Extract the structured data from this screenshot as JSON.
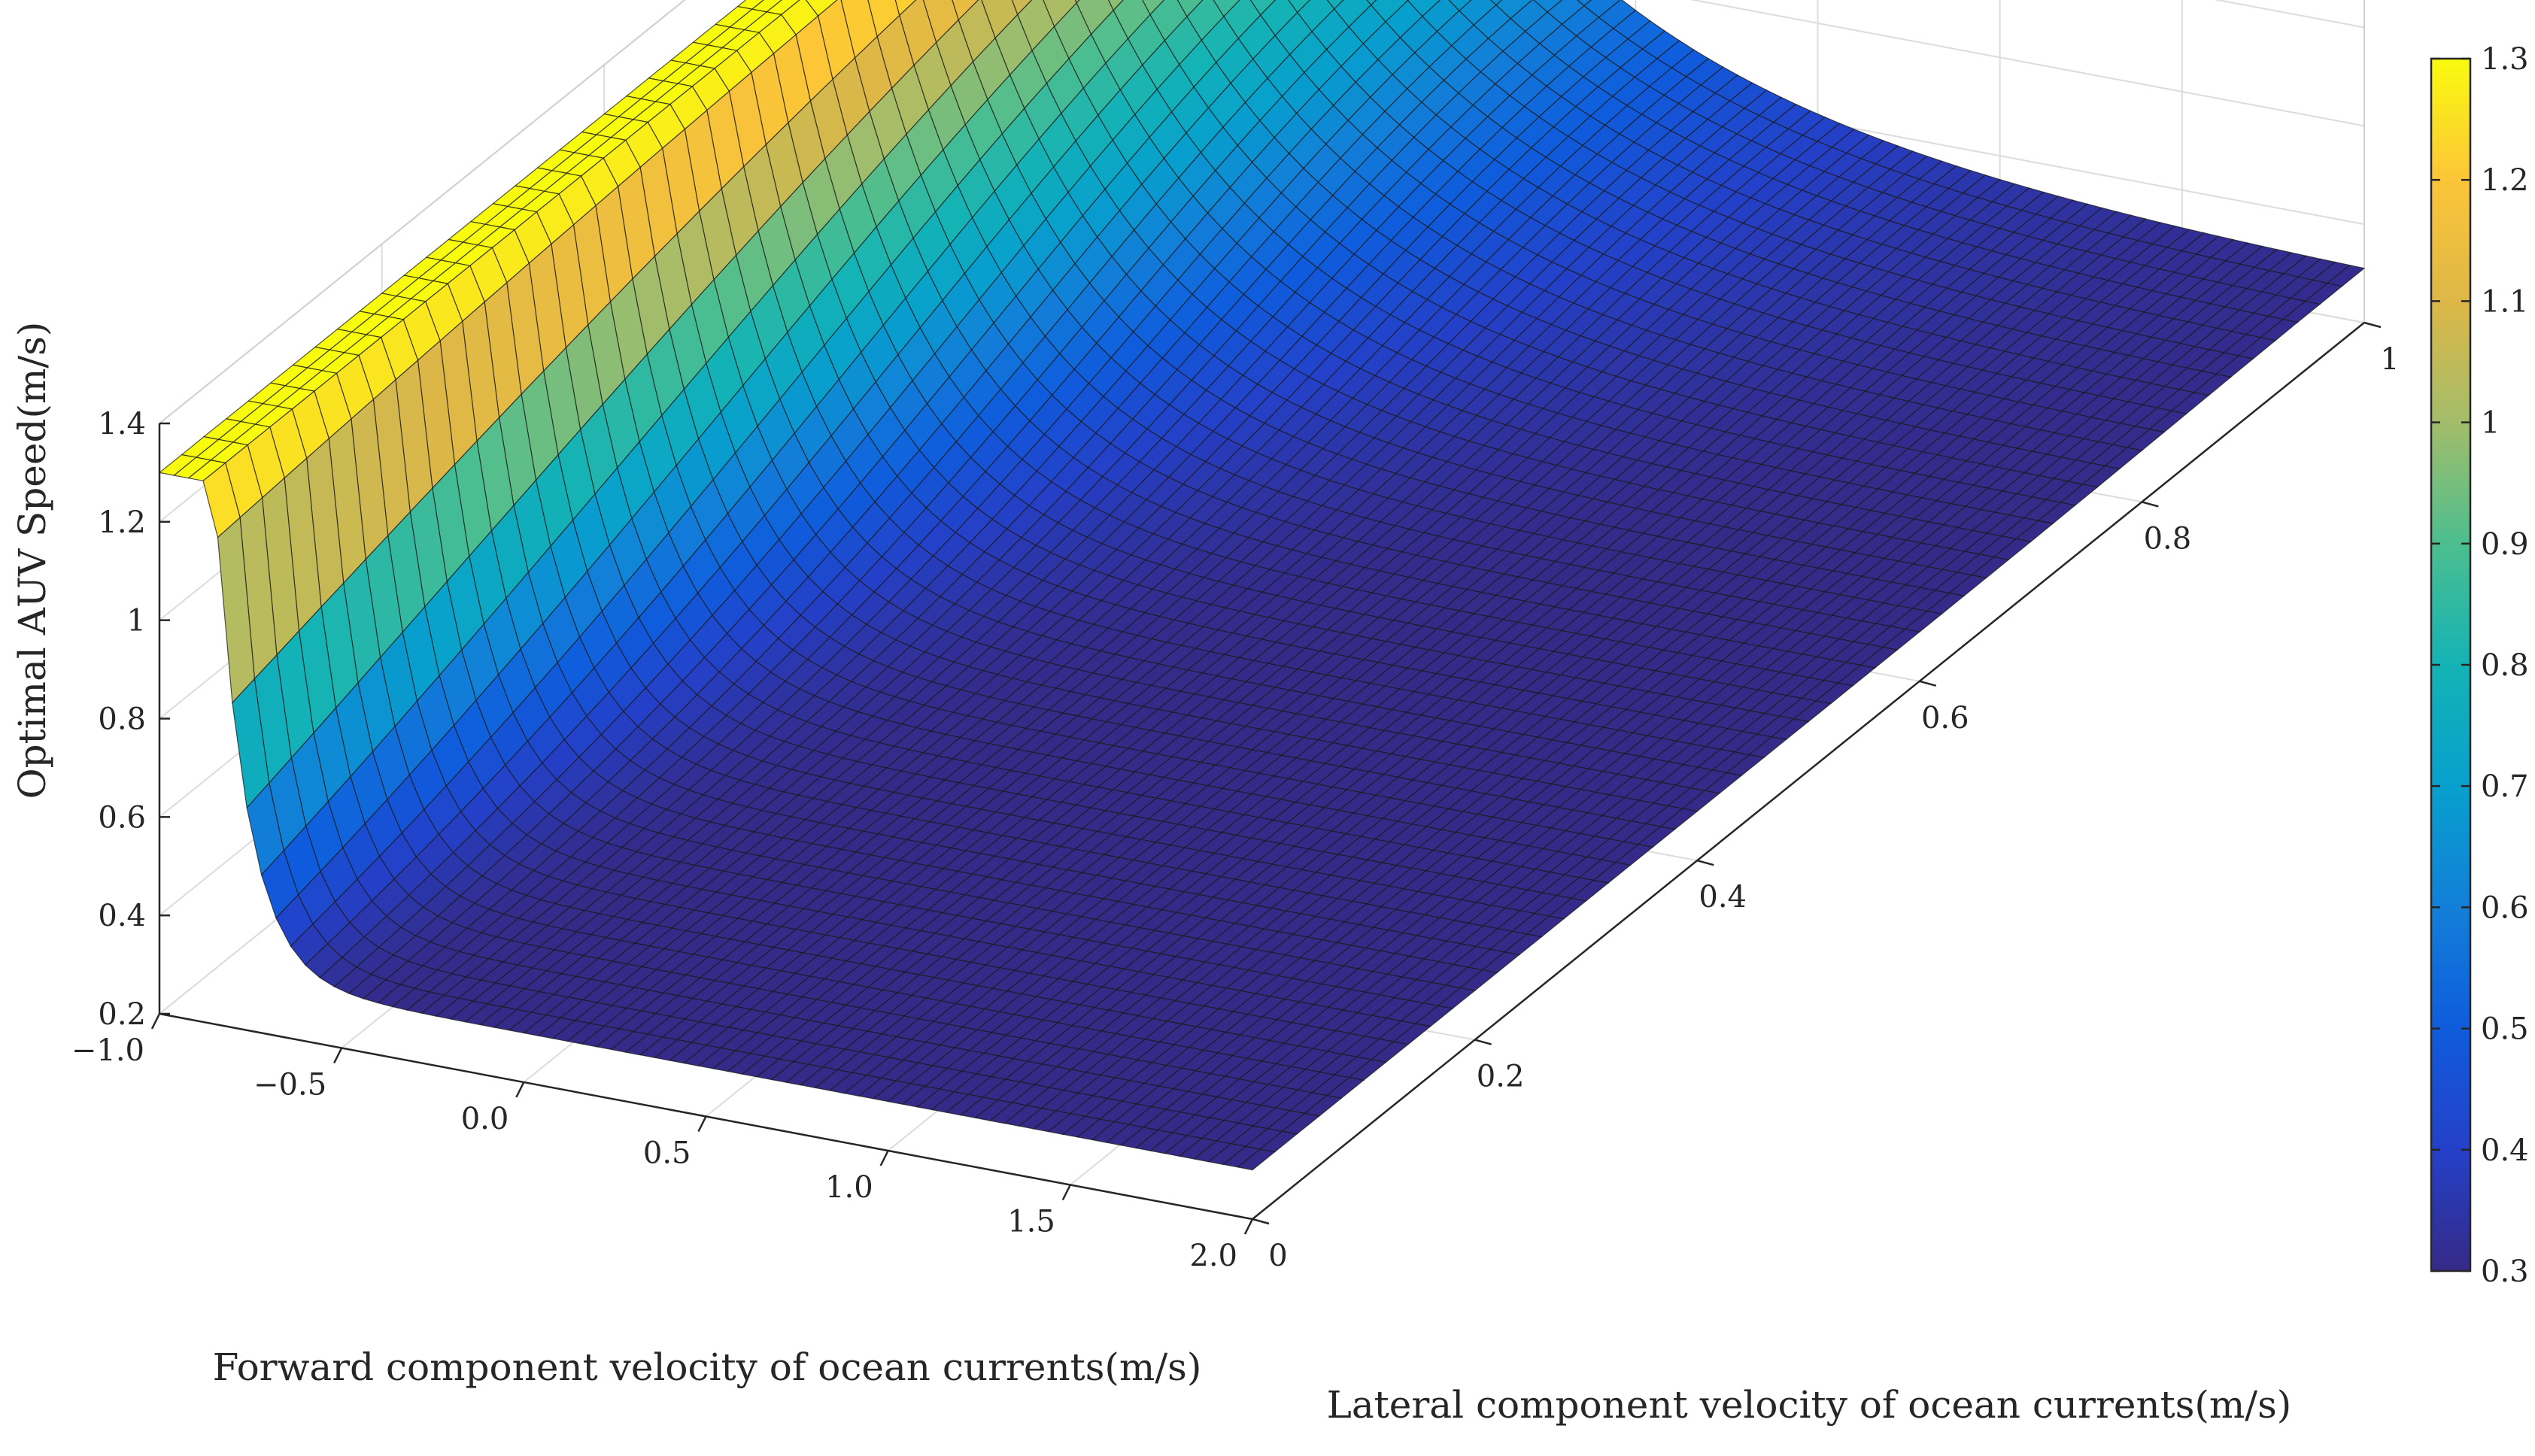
{
  "chart_data": {
    "type": "surface",
    "title": "",
    "xlabel": "Forward component velocity of ocean currents(m/s)",
    "ylabel": "Lateral component velocity of ocean currents(m/s)",
    "zlabel": "Optimal AUV Speed(m/s)",
    "x_range": [
      -1.0,
      2.0
    ],
    "y_range": [
      0,
      1
    ],
    "z_range": [
      0.2,
      1.4
    ],
    "x_ticks": [
      "−1.0",
      "−0.5",
      "0.0",
      "0.5",
      "1.0",
      "1.5",
      "2.0"
    ],
    "y_ticks": [
      "0",
      "0.2",
      "0.4",
      "0.6",
      "0.8",
      "1"
    ],
    "z_ticks": [
      "0.2",
      "0.4",
      "0.6",
      "0.8",
      "1",
      "1.2",
      "1.4"
    ],
    "colorbar": {
      "range": [
        0.3,
        1.3
      ],
      "ticks": [
        "0.3",
        "0.4",
        "0.5",
        "0.6",
        "0.7",
        "0.8",
        "0.9",
        "1",
        "1.1",
        "1.2",
        "1.3"
      ],
      "colormap": "parula"
    },
    "grid": true,
    "description_points": [
      {
        "x": -1.0,
        "y": 0.0,
        "z": 1.3
      },
      {
        "x": -1.0,
        "y": 1.0,
        "z": 1.3
      },
      {
        "x": -0.85,
        "y": 0.0,
        "z": 1.3
      },
      {
        "x": -0.5,
        "y": 0.0,
        "z": 0.3
      },
      {
        "x": -0.85,
        "y": 1.0,
        "z": 1.3
      },
      {
        "x": 0.0,
        "y": 1.0,
        "z": 0.75
      },
      {
        "x": 0.5,
        "y": 1.0,
        "z": 0.5
      },
      {
        "x": 1.0,
        "y": 1.0,
        "z": 0.4
      },
      {
        "x": 2.0,
        "y": 1.0,
        "z": 0.3
      },
      {
        "x": 2.0,
        "y": 0.0,
        "z": 0.3
      }
    ]
  }
}
